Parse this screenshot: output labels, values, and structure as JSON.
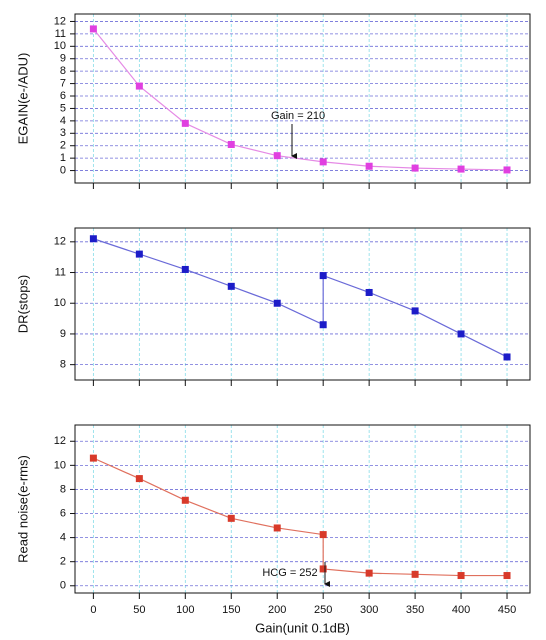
{
  "chart_data": [
    {
      "type": "line",
      "ylabel": "EGAIN(e-/ADU)",
      "x": [
        0,
        50,
        100,
        150,
        200,
        250,
        300,
        350,
        400,
        450
      ],
      "values": [
        11.4,
        6.8,
        3.8,
        2.1,
        1.2,
        0.7,
        0.35,
        0.2,
        0.12,
        0.05
      ],
      "color": "#e040e0",
      "line_color": "#e58ae5",
      "xlim": [
        -20,
        475
      ],
      "xticks": [
        0,
        50,
        100,
        150,
        200,
        250,
        300,
        350,
        400,
        450
      ],
      "ylim": [
        -1,
        12.6
      ],
      "yticks": [
        0,
        1,
        2,
        3,
        4,
        5,
        6,
        7,
        8,
        9,
        10,
        11,
        12
      ],
      "grid": true,
      "annotations": [
        "Gain = 210"
      ]
    },
    {
      "type": "line",
      "ylabel": "DR(stops)",
      "x": [
        0,
        50,
        100,
        150,
        200,
        250,
        250,
        300,
        350,
        400,
        450
      ],
      "values": [
        12.1,
        11.6,
        11.1,
        10.55,
        10.0,
        9.3,
        10.9,
        10.35,
        9.75,
        9.0,
        8.25
      ],
      "color": "#1c1cc8",
      "line_color": "#6a6ad8",
      "xlim": [
        -20,
        475
      ],
      "xticks": [
        0,
        50,
        100,
        150,
        200,
        250,
        300,
        350,
        400,
        450
      ],
      "ylim": [
        7.5,
        12.45
      ],
      "yticks": [
        8,
        9,
        10,
        11,
        12
      ],
      "grid": true
    },
    {
      "type": "line",
      "ylabel": "Read noise(e-rms)",
      "xlabel": "Gain(unit 0.1dB)",
      "x": [
        0,
        50,
        100,
        150,
        200,
        250,
        250,
        300,
        350,
        400,
        450
      ],
      "values": [
        10.6,
        8.9,
        7.1,
        5.6,
        4.8,
        4.25,
        1.4,
        1.05,
        0.95,
        0.85,
        0.85
      ],
      "color": "#d83a2a",
      "line_color": "#e0705e",
      "xlim": [
        -20,
        475
      ],
      "xticks": [
        0,
        50,
        100,
        150,
        200,
        250,
        300,
        350,
        400,
        450
      ],
      "ylim": [
        -0.6,
        13.35
      ],
      "yticks": [
        0,
        2,
        4,
        6,
        8,
        10,
        12
      ],
      "grid": true,
      "annotations": [
        "HCG = 252"
      ]
    }
  ]
}
